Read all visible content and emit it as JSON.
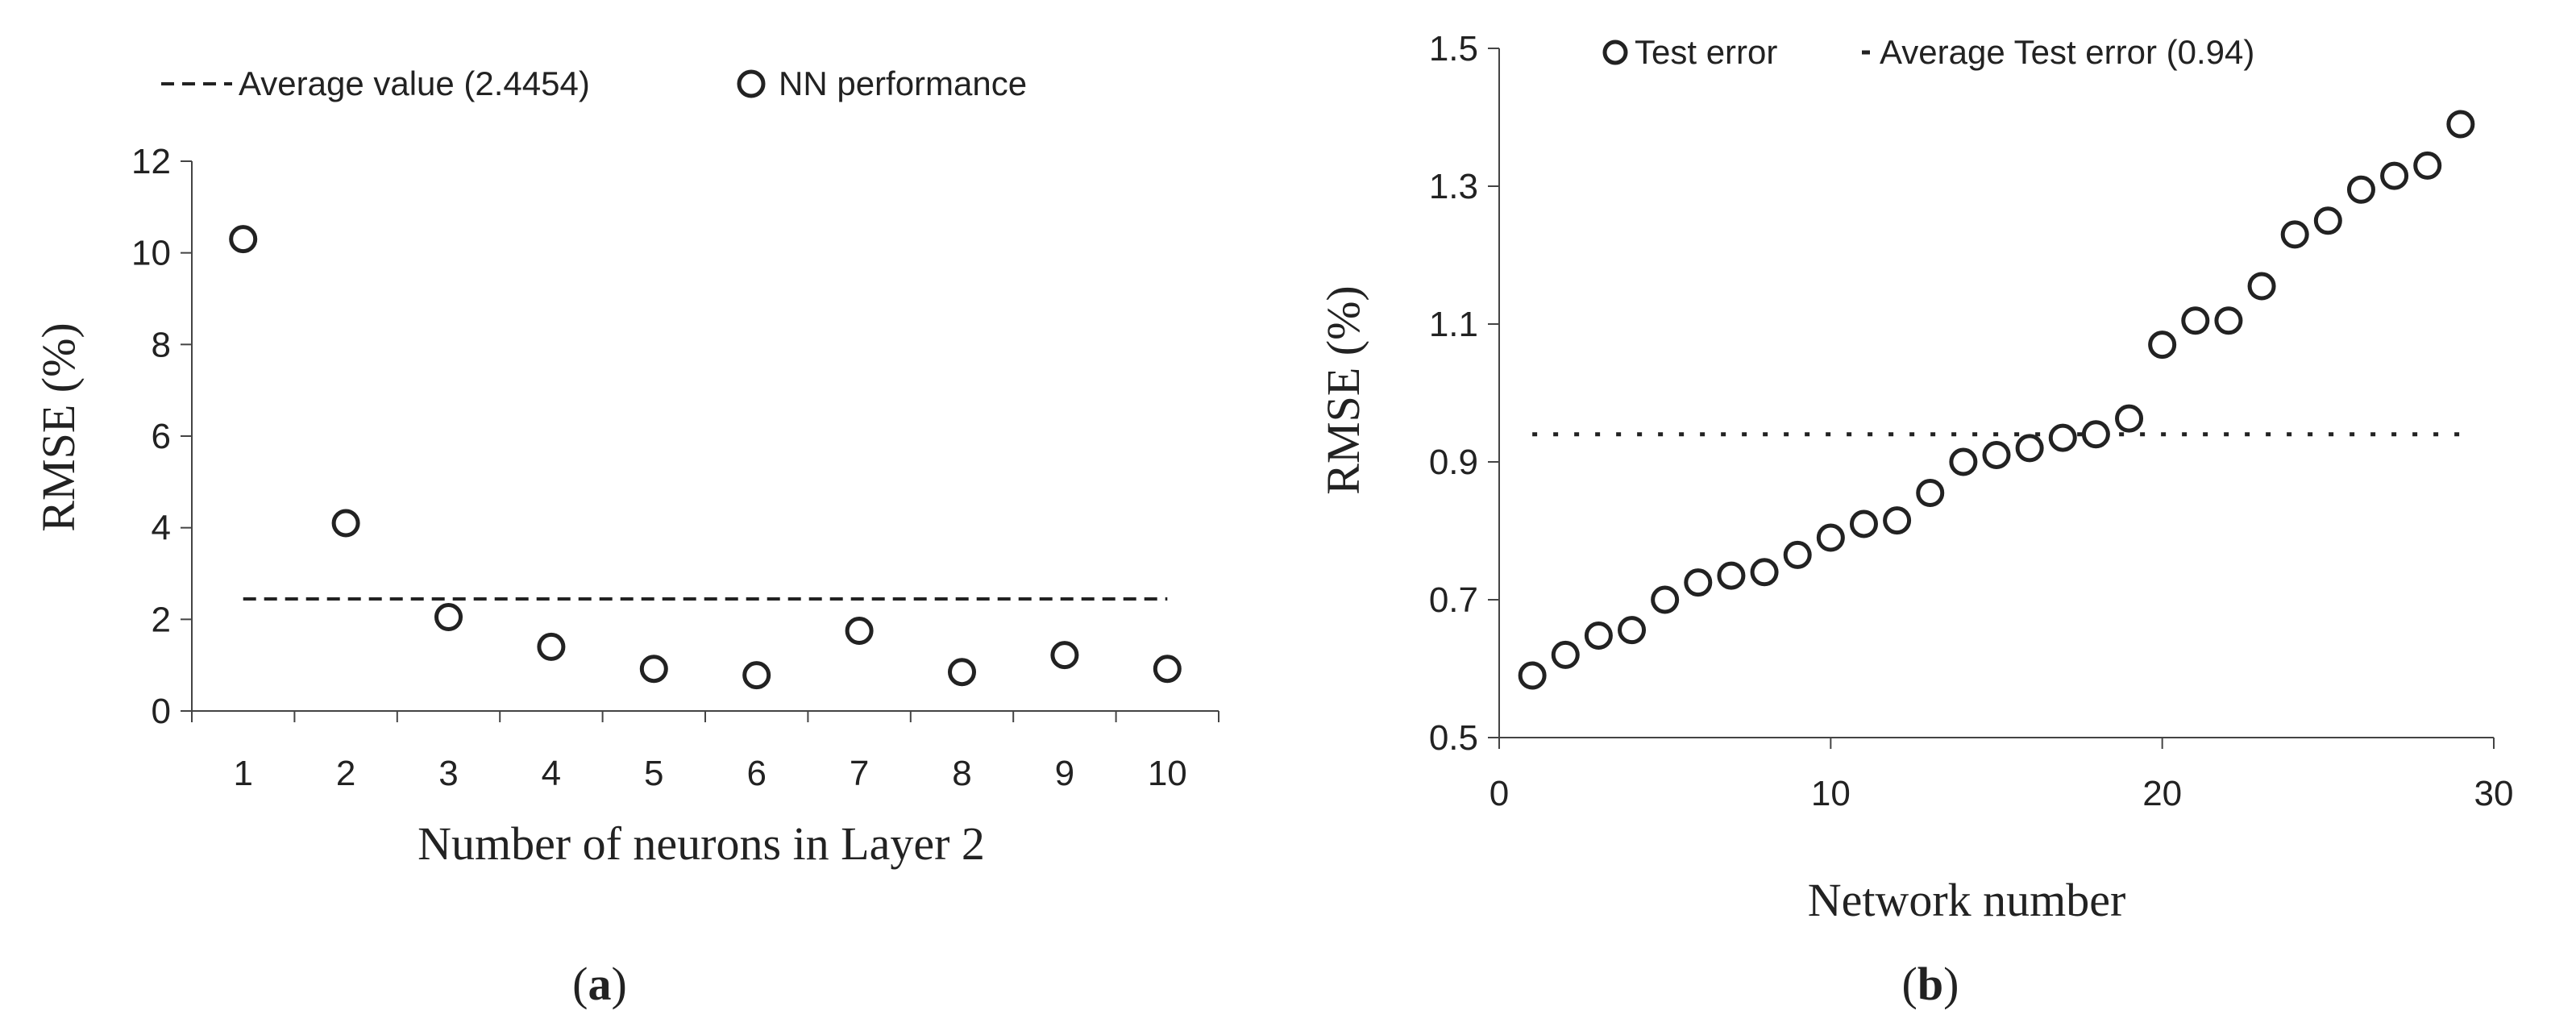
{
  "chart_data": [
    {
      "type": "scatter",
      "panel_label": {
        "open": "(",
        "letter": "a",
        "close": ")"
      },
      "xlabel": "Number of neurons in Layer 2",
      "ylabel": "RMSE (%)",
      "xlim": [
        0.5,
        10.5
      ],
      "ylim": [
        0,
        12
      ],
      "xticks": [
        1,
        2,
        3,
        4,
        5,
        6,
        7,
        8,
        9,
        10
      ],
      "yticks": [
        0,
        2,
        4,
        6,
        8,
        10,
        12
      ],
      "legend_position": "top",
      "series": [
        {
          "name": "NN performance",
          "marker": "open-circle",
          "x": [
            1,
            2,
            3,
            4,
            5,
            6,
            7,
            8,
            9,
            10
          ],
          "y": [
            10.3,
            4.1,
            2.05,
            1.4,
            0.92,
            0.78,
            1.75,
            0.85,
            1.22,
            0.92
          ]
        }
      ],
      "reference_line": {
        "name": "Average value (2.4454)",
        "style": "dashed",
        "y": 2.4454,
        "x_range": [
          1,
          10
        ]
      }
    },
    {
      "type": "scatter",
      "panel_label": {
        "open": "(",
        "letter": "b",
        "close": ")"
      },
      "xlabel": "Network number",
      "ylabel": "RMSE (%)",
      "xlim": [
        0,
        30
      ],
      "ylim": [
        0.5,
        1.5
      ],
      "xticks": [
        0,
        10,
        20,
        30
      ],
      "yticks": [
        0.5,
        0.7,
        0.9,
        1.1,
        1.3,
        1.5
      ],
      "legend_position": "top",
      "series": [
        {
          "name": "Test error",
          "marker": "open-circle",
          "x": [
            1,
            2,
            3,
            4,
            5,
            6,
            7,
            8,
            9,
            10,
            11,
            12,
            13,
            14,
            15,
            16,
            17,
            18,
            19,
            20,
            21,
            22,
            23,
            24,
            25,
            26,
            27,
            28,
            29
          ],
          "y": [
            0.59,
            0.62,
            0.648,
            0.656,
            0.7,
            0.725,
            0.735,
            0.74,
            0.765,
            0.79,
            0.81,
            0.815,
            0.855,
            0.9,
            0.91,
            0.92,
            0.935,
            0.94,
            0.963,
            1.07,
            1.105,
            1.105,
            1.155,
            1.23,
            1.25,
            1.295,
            1.315,
            1.33,
            1.39
          ]
        }
      ],
      "reference_line": {
        "name": "Average Test error (0.94)",
        "style": "dotted",
        "y": 0.94,
        "x_range": [
          1,
          29
        ]
      }
    }
  ]
}
